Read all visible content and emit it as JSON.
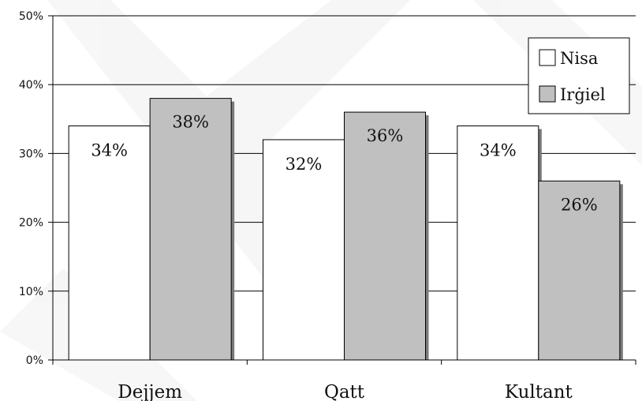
{
  "chart_data": {
    "type": "bar",
    "categories": [
      "Dejjem",
      "Qatt",
      "Kultant"
    ],
    "series": [
      {
        "name": "Nisa",
        "values": [
          34,
          32,
          34
        ],
        "labels": [
          "34%",
          "32%",
          "34%"
        ],
        "color": "#ffffff"
      },
      {
        "name": "Irġiel",
        "values": [
          38,
          36,
          26
        ],
        "labels": [
          "38%",
          "36%",
          "26%"
        ],
        "color": "#c0c0c0"
      }
    ],
    "ylim": [
      0,
      50
    ],
    "yticks": [
      "0%",
      "10%",
      "20%",
      "30%",
      "40%",
      "50%"
    ],
    "grid": true,
    "legend_position": "top-right"
  }
}
